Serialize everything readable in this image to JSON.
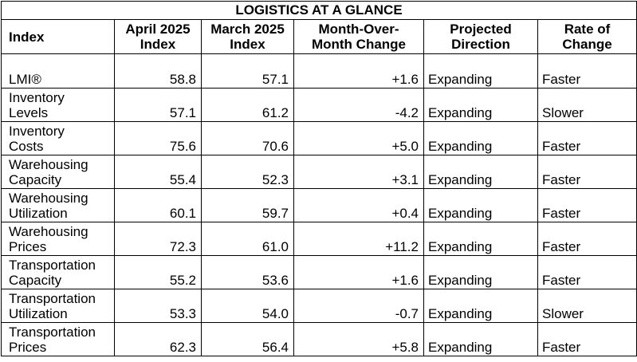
{
  "title": "LOGISTICS AT A GLANCE",
  "headers": {
    "index": "Index",
    "april_l1": "April 2025",
    "april_l2": "Index",
    "march_l1": "March 2025",
    "march_l2": "Index",
    "mom_l1": "Month-Over-",
    "mom_l2": "Month Change",
    "proj_l1": "Projected",
    "proj_l2": "Direction",
    "rate_l1": "Rate of",
    "rate_l2": "Change"
  },
  "rows": [
    {
      "name_l1": "LMI®",
      "name_l2": "",
      "april": "58.8",
      "march": "57.1",
      "change": "+1.6",
      "direction": "Expanding",
      "rate": "Faster"
    },
    {
      "name_l1": "Inventory",
      "name_l2": "Levels",
      "april": "57.1",
      "march": "61.2",
      "change": "-4.2",
      "direction": "Expanding",
      "rate": "Slower"
    },
    {
      "name_l1": "Inventory",
      "name_l2": "Costs",
      "april": "75.6",
      "march": "70.6",
      "change": "+5.0",
      "direction": "Expanding",
      "rate": "Faster"
    },
    {
      "name_l1": "Warehousing",
      "name_l2": "Capacity",
      "april": "55.4",
      "march": "52.3",
      "change": "+3.1",
      "direction": "Expanding",
      "rate": "Faster"
    },
    {
      "name_l1": "Warehousing",
      "name_l2": "Utilization",
      "april": "60.1",
      "march": "59.7",
      "change": "+0.4",
      "direction": "Expanding",
      "rate": "Faster"
    },
    {
      "name_l1": "Warehousing",
      "name_l2": "Prices",
      "april": "72.3",
      "march": "61.0",
      "change": "+11.2",
      "direction": "Expanding",
      "rate": "Faster"
    },
    {
      "name_l1": "Transportation",
      "name_l2": "Capacity",
      "april": "55.2",
      "march": "53.6",
      "change": "+1.6",
      "direction": "Expanding",
      "rate": "Faster"
    },
    {
      "name_l1": "Transportation",
      "name_l2": "Utilization",
      "april": "53.3",
      "march": "54.0",
      "change": "-0.7",
      "direction": "Expanding",
      "rate": "Slower"
    },
    {
      "name_l1": "Transportation",
      "name_l2": "Prices",
      "april": "62.3",
      "march": "56.4",
      "change": "+5.8",
      "direction": "Expanding",
      "rate": "Faster"
    }
  ]
}
